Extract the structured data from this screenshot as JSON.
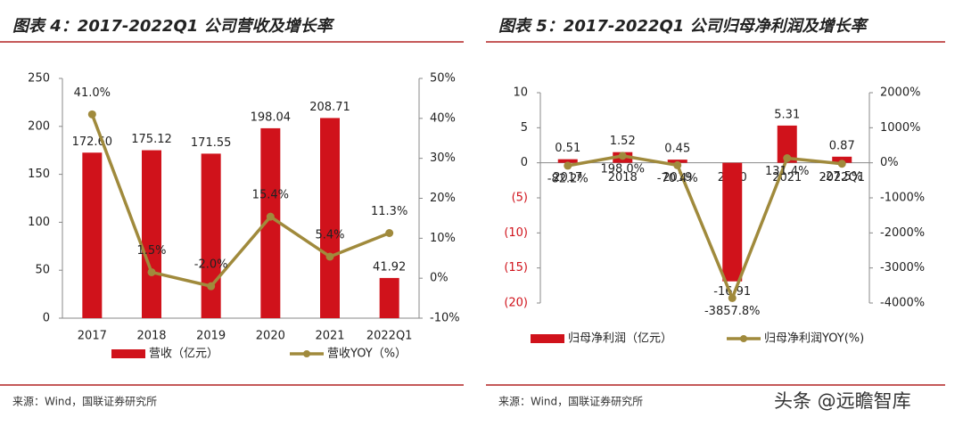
{
  "chart_data": [
    {
      "type": "bar",
      "title": "图表 4：2017-2022Q1 公司营收及增长率",
      "categories": [
        "2017",
        "2018",
        "2019",
        "2020",
        "2021",
        "2022Q1"
      ],
      "series": [
        {
          "name": "营收（亿元）",
          "type": "bar",
          "color": "#d0121b",
          "values": [
            172.6,
            175.12,
            171.55,
            198.04,
            208.71,
            41.92
          ],
          "value_labels": [
            "172.60",
            "175.12",
            "171.55",
            "198.04",
            "208.71",
            "41.92"
          ]
        },
        {
          "name": "营收YOY（%）",
          "type": "line",
          "axis": "y2",
          "color": "#a08a3c",
          "values": [
            41.0,
            1.5,
            -2.0,
            15.4,
            5.4,
            11.3
          ],
          "value_labels": [
            "41.0%",
            "1.5%",
            "-2.0%",
            "15.4%",
            "5.4%",
            "11.3%"
          ]
        }
      ],
      "ylim": [
        0,
        250
      ],
      "yticks": [
        0,
        50,
        100,
        150,
        200,
        250
      ],
      "y2lim": [
        -10,
        50
      ],
      "y2ticks": [
        {
          "value": -10,
          "label": "-10%"
        },
        {
          "value": 0,
          "label": "0%"
        },
        {
          "value": 10,
          "label": "10%"
        },
        {
          "value": 20,
          "label": "20%"
        },
        {
          "value": 30,
          "label": "30%"
        },
        {
          "value": 40,
          "label": "40%"
        },
        {
          "value": 50,
          "label": "50%"
        }
      ],
      "grid": false,
      "source": "来源：Wind，国联证券研究所"
    },
    {
      "type": "bar",
      "title": "图表 5：2017-2022Q1 公司归母净利润及增长率",
      "categories": [
        "2017",
        "2018",
        "2019",
        "2020",
        "2021",
        "2022Q1"
      ],
      "series": [
        {
          "name": "归母净利润（亿元）",
          "type": "bar",
          "color": "#d0121b",
          "values": [
            0.51,
            1.52,
            0.45,
            -16.91,
            5.31,
            0.87
          ]
        },
        {
          "name": "归母净利润YOY(%)",
          "type": "line",
          "axis": "y2",
          "color": "#a08a3c",
          "values": [
            -82.2,
            198.0,
            -70.4,
            -3857.8,
            131.4,
            -27.5
          ],
          "value_labels": [
            "-82.2%",
            "198.0%",
            "-70.4%",
            "-3857.8%",
            "131.4%",
            "-27.5%"
          ]
        }
      ],
      "ylim": [
        -20,
        10
      ],
      "yticks": [
        {
          "value": -20,
          "label": "(20)"
        },
        {
          "value": -15,
          "label": "(15)"
        },
        {
          "value": -10,
          "label": "(10)"
        },
        {
          "value": -5,
          "label": "(5)"
        },
        0,
        5,
        10
      ],
      "y2lim": [
        -4000,
        2000
      ],
      "y2ticks": [
        {
          "value": -4000,
          "label": "-4000%"
        },
        {
          "value": -3000,
          "label": "-3000%"
        },
        {
          "value": -2000,
          "label": "-2000%"
        },
        {
          "value": -1000,
          "label": "-1000%"
        },
        {
          "value": 0,
          "label": "0%"
        },
        {
          "value": 1000,
          "label": "1000%"
        },
        {
          "value": 2000,
          "label": "2000%"
        }
      ],
      "grid": false,
      "source": "来源：Wind，国联证券研究所"
    }
  ],
  "watermark": "头条 @远瞻智库"
}
